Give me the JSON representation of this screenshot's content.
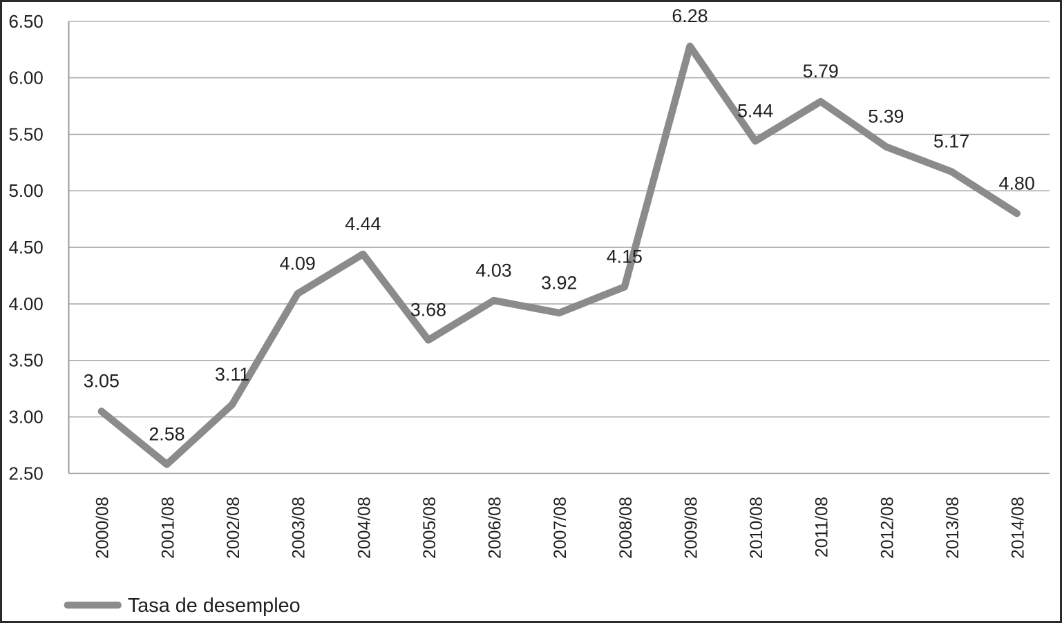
{
  "chart_data": {
    "type": "line",
    "title": "",
    "xlabel": "",
    "ylabel": "",
    "categories": [
      "2000/08",
      "2001/08",
      "2002/08",
      "2003/08",
      "2004/08",
      "2005/08",
      "2006/08",
      "2007/08",
      "2008/08",
      "2009/08",
      "2010/08",
      "2011/08",
      "2012/08",
      "2013/08",
      "2014/08"
    ],
    "series": [
      {
        "name": "Tasa de desempleo",
        "values": [
          3.05,
          2.58,
          3.11,
          4.09,
          4.44,
          3.68,
          4.03,
          3.92,
          4.15,
          6.28,
          5.44,
          5.79,
          5.39,
          5.17,
          4.8
        ],
        "point_labels": [
          "3.05",
          "2.58",
          "3.11",
          "4.09",
          "4.44",
          "3.68",
          "4.03",
          "3.92",
          "4.15",
          "6.28",
          "5.44",
          "5.79",
          "5.39",
          "5.17",
          "4.80"
        ]
      }
    ],
    "ylim": [
      2.5,
      6.5
    ],
    "ytick_step": 0.5,
    "ytick_labels": [
      "2.50",
      "3.00",
      "3.50",
      "4.00",
      "4.50",
      "5.00",
      "5.50",
      "6.00",
      "6.50"
    ],
    "grid": "horizontal",
    "legend": {
      "position": "bottom-left",
      "label": "Tasa de desempleo"
    }
  },
  "colors": {
    "line": "#8b8b8b",
    "grid": "#a4a4a4",
    "axis": "#9a9a9a",
    "text": "#1f1f1f",
    "frame": "#2a2a2a",
    "background": "#ffffff"
  }
}
